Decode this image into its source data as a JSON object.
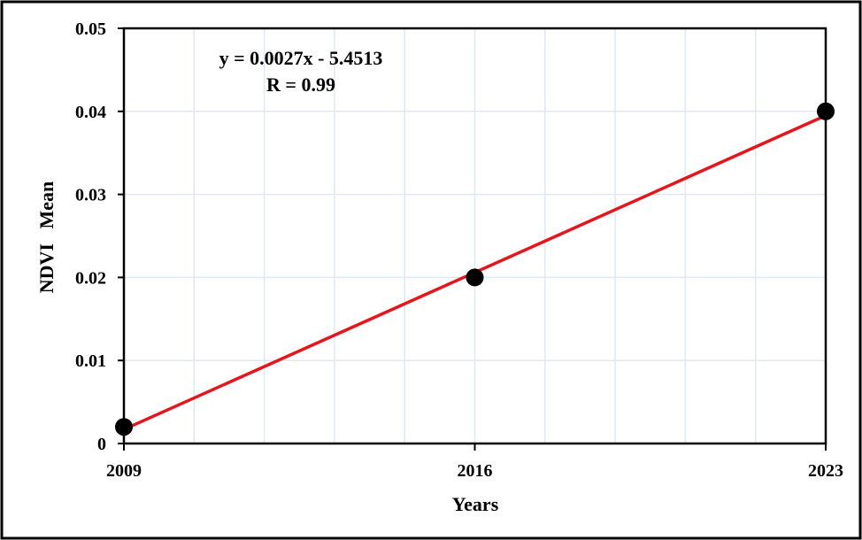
{
  "chart_data": {
    "type": "scatter",
    "title": "",
    "xlabel": "Years",
    "ylabel": "NDVI   Mean",
    "x": [
      2009,
      2016,
      2023
    ],
    "series": [
      {
        "values": [
          0.002,
          0.02,
          0.04
        ],
        "color": "#000000"
      }
    ],
    "trendline": {
      "type": "linear",
      "equation": "y = 0.0027x - 5.4513",
      "r_label": "R = 0.99",
      "slope": 0.0027,
      "intercept": -5.4513,
      "start_value": 0.0017,
      "end_value": 0.0395,
      "color": "#e8141b"
    },
    "xlim": [
      2009,
      2023
    ],
    "ylim": [
      0,
      0.05
    ],
    "x_ticks": [
      "2009",
      "2016",
      "2023"
    ],
    "y_ticks": [
      "0",
      "0.01",
      "0.02",
      "0.03",
      "0.04",
      "0.05"
    ],
    "grid": true,
    "grid_color": "#dfe8f3",
    "legend": "none"
  }
}
